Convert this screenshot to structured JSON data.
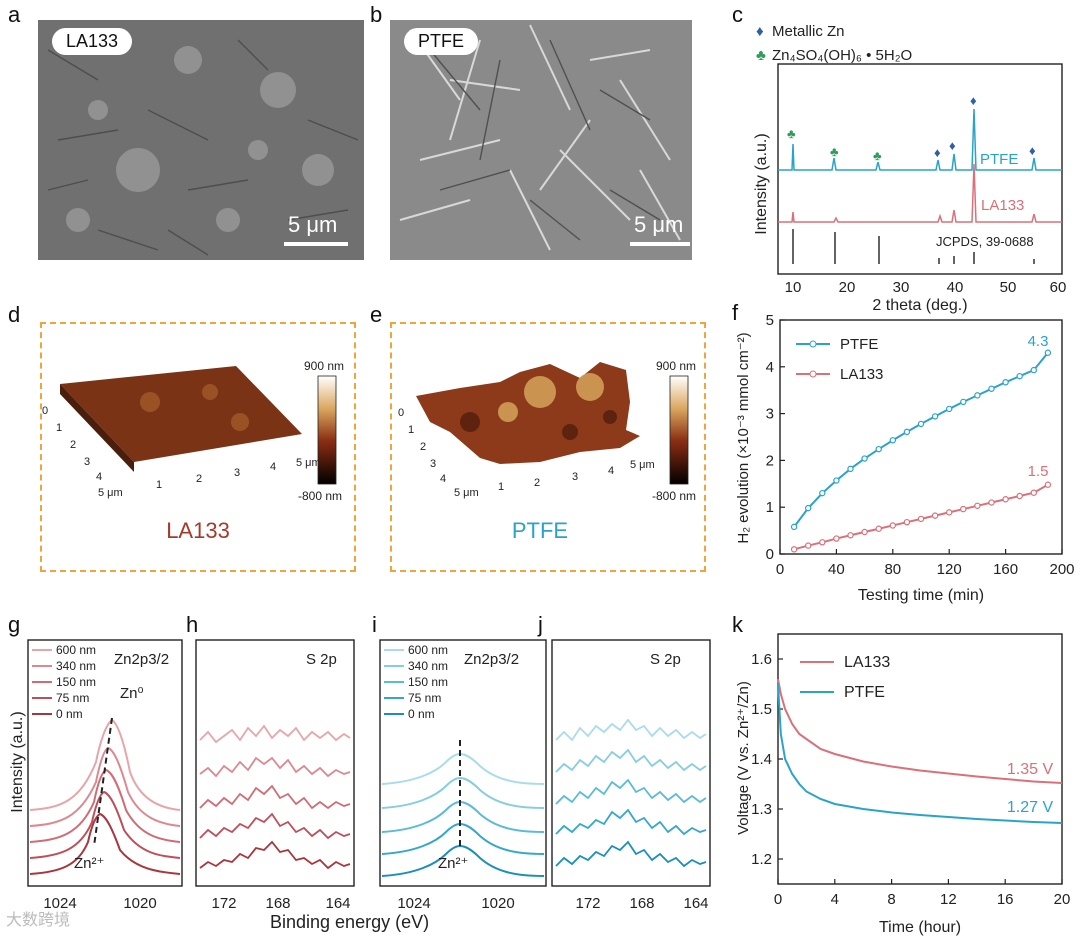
{
  "panels": {
    "a": {
      "letter": "a",
      "tag": "LA133",
      "scale": "5 μm"
    },
    "b": {
      "letter": "b",
      "tag": "PTFE",
      "scale": "5 μm"
    },
    "c": {
      "letter": "c",
      "legend": [
        {
          "marker": "♦",
          "label": "Metallic Zn"
        },
        {
          "marker": "♣",
          "label": "Zn₄SO₄(OH)₆ • 5H₂O"
        }
      ],
      "ylabel": "Intensity (a.u.)",
      "xlabel": "2 theta (deg.)",
      "xticks": [
        "10",
        "20",
        "30",
        "40",
        "50",
        "60"
      ],
      "trace_labels": [
        "PTFE",
        "LA133",
        "JCPDS, 39-0688"
      ]
    },
    "d": {
      "letter": "d",
      "title": "LA133",
      "cbar_top": "900 nm",
      "cbar_bottom": "-800 nm",
      "axis_ticks": [
        "0",
        "1",
        "2",
        "3",
        "4",
        "5 μm"
      ],
      "axis_ticks2": [
        "1",
        "2",
        "3",
        "4",
        "5 μm"
      ]
    },
    "e": {
      "letter": "e",
      "title": "PTFE",
      "cbar_top": "900 nm",
      "cbar_bottom": "-800 nm",
      "axis_ticks": [
        "0",
        "1",
        "2",
        "3",
        "4",
        "5 μm"
      ],
      "axis_ticks2": [
        "1",
        "2",
        "3",
        "4",
        "5 μm"
      ]
    },
    "f": {
      "letter": "f",
      "ylabel": "H₂ evolution (×10⁻³ mmol cm⁻²)",
      "xlabel": "Testing time (min)",
      "legend": [
        "PTFE",
        "LA133"
      ],
      "end_labels": [
        "4.3",
        "1.5"
      ]
    },
    "g": {
      "letter": "g",
      "title": "Zn2p3/2",
      "ylabel": "Intensity (a.u.)",
      "depths": [
        "600 nm",
        "340 nm",
        "150 nm",
        "75 nm",
        "0 nm"
      ],
      "peak_top": "Zn⁰",
      "peak_bottom": "Zn²⁺",
      "xticks": [
        "1024",
        "1020"
      ]
    },
    "h": {
      "letter": "h",
      "title": "S 2p",
      "xticks": [
        "172",
        "168",
        "164"
      ]
    },
    "i": {
      "letter": "i",
      "title": "Zn2p3/2",
      "depths": [
        "600 nm",
        "340 nm",
        "150 nm",
        "75 nm",
        "0 nm"
      ],
      "peak_bottom": "Zn²⁺",
      "xticks": [
        "1024",
        "1020"
      ]
    },
    "j": {
      "letter": "j",
      "title": "S 2p",
      "xticks": [
        "172",
        "168",
        "164"
      ]
    },
    "k": {
      "letter": "k",
      "ylabel": "Voltage (V vs. Zn²⁺/Zn)",
      "xlabel": "Time (hour)",
      "legend": [
        "LA133",
        "PTFE"
      ],
      "end_labels": [
        "1.35 V",
        "1.27 V"
      ]
    },
    "shared_xlabel": "Binding energy (eV)",
    "watermark": "大数跨境"
  },
  "colors": {
    "blue": "#2aa3c9",
    "red": "#d9707a",
    "black": "#222222",
    "green": "#2f9e5a",
    "navy": "#2e5fa8"
  },
  "chart_data": [
    {
      "type": "line",
      "id": "f",
      "title": "",
      "xlabel": "Testing time (min)",
      "ylabel": "H₂ evolution (×10⁻³ mmol cm⁻²)",
      "xlim": [
        0,
        200
      ],
      "ylim": [
        0,
        5
      ],
      "xticks": [
        0,
        40,
        80,
        120,
        160,
        200
      ],
      "yticks": [
        0,
        1,
        2,
        3,
        4,
        5
      ],
      "x": [
        10,
        20,
        30,
        40,
        50,
        60,
        70,
        80,
        90,
        100,
        110,
        120,
        130,
        140,
        150,
        160,
        170,
        180,
        190
      ],
      "series": [
        {
          "name": "PTFE",
          "values": [
            0.58,
            0.98,
            1.3,
            1.57,
            1.82,
            2.04,
            2.24,
            2.43,
            2.61,
            2.78,
            2.94,
            3.1,
            3.25,
            3.39,
            3.53,
            3.67,
            3.8,
            3.93,
            4.3
          ]
        },
        {
          "name": "LA133",
          "values": [
            0.1,
            0.18,
            0.25,
            0.33,
            0.4,
            0.47,
            0.54,
            0.61,
            0.68,
            0.75,
            0.82,
            0.89,
            0.96,
            1.03,
            1.1,
            1.17,
            1.24,
            1.31,
            1.48
          ]
        }
      ]
    },
    {
      "type": "line",
      "id": "k",
      "xlabel": "Time (hour)",
      "ylabel": "Voltage (V vs. Zn²⁺/Zn)",
      "xlim": [
        0,
        20
      ],
      "ylim": [
        1.15,
        1.65
      ],
      "xticks": [
        0,
        4,
        8,
        12,
        16,
        20
      ],
      "yticks": [
        1.2,
        1.3,
        1.4,
        1.5,
        1.6
      ],
      "x": [
        0,
        0.2,
        0.5,
        1,
        1.5,
        2,
        3,
        4,
        6,
        8,
        10,
        12,
        14,
        16,
        18,
        20
      ],
      "series": [
        {
          "name": "LA133",
          "values": [
            1.56,
            1.53,
            1.5,
            1.47,
            1.45,
            1.44,
            1.42,
            1.41,
            1.395,
            1.385,
            1.377,
            1.371,
            1.365,
            1.36,
            1.355,
            1.352
          ]
        },
        {
          "name": "PTFE",
          "values": [
            1.55,
            1.45,
            1.4,
            1.37,
            1.35,
            1.335,
            1.32,
            1.31,
            1.3,
            1.293,
            1.288,
            1.284,
            1.28,
            1.277,
            1.274,
            1.272
          ]
        }
      ]
    }
  ]
}
